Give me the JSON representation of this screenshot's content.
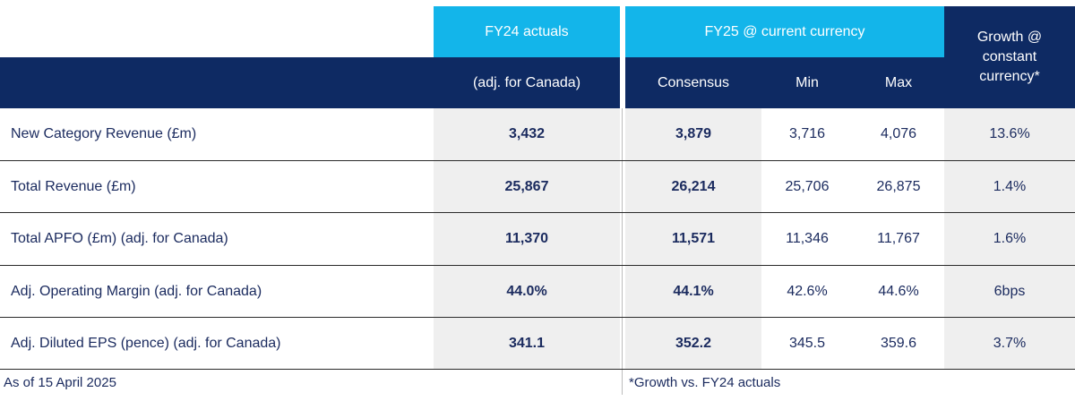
{
  "header": {
    "fy24_title": "FY24 actuals",
    "fy24_sub": "(adj. for Canada)",
    "fy25_title": "FY25 @ current currency",
    "consensus": "Consensus",
    "min": "Min",
    "max": "Max",
    "growth": "Growth @ constant currency*"
  },
  "rows": [
    {
      "label": "New Category Revenue (£m)",
      "fy24": "3,432",
      "consensus": "3,879",
      "min": "3,716",
      "max": "4,076",
      "growth": "13.6%"
    },
    {
      "label": "Total Revenue (£m)",
      "fy24": "25,867",
      "consensus": "26,214",
      "min": "25,706",
      "max": "26,875",
      "growth": "1.4%"
    },
    {
      "label": "Total APFO (£m) (adj. for Canada)",
      "fy24": "11,370",
      "consensus": "11,571",
      "min": "11,346",
      "max": "11,767",
      "growth": "1.6%"
    },
    {
      "label": "Adj. Operating Margin (adj. for Canada)",
      "fy24": "44.0%",
      "consensus": "44.1%",
      "min": "42.6%",
      "max": "44.6%",
      "growth": "6bps"
    },
    {
      "label": "Adj. Diluted EPS (pence) (adj. for Canada)",
      "fy24": "341.1",
      "consensus": "352.2",
      "min": "345.5",
      "max": "359.6",
      "growth": "3.7%"
    }
  ],
  "footer": {
    "left": "As of 15 April 2025",
    "right": "*Growth vs. FY24 actuals"
  }
}
